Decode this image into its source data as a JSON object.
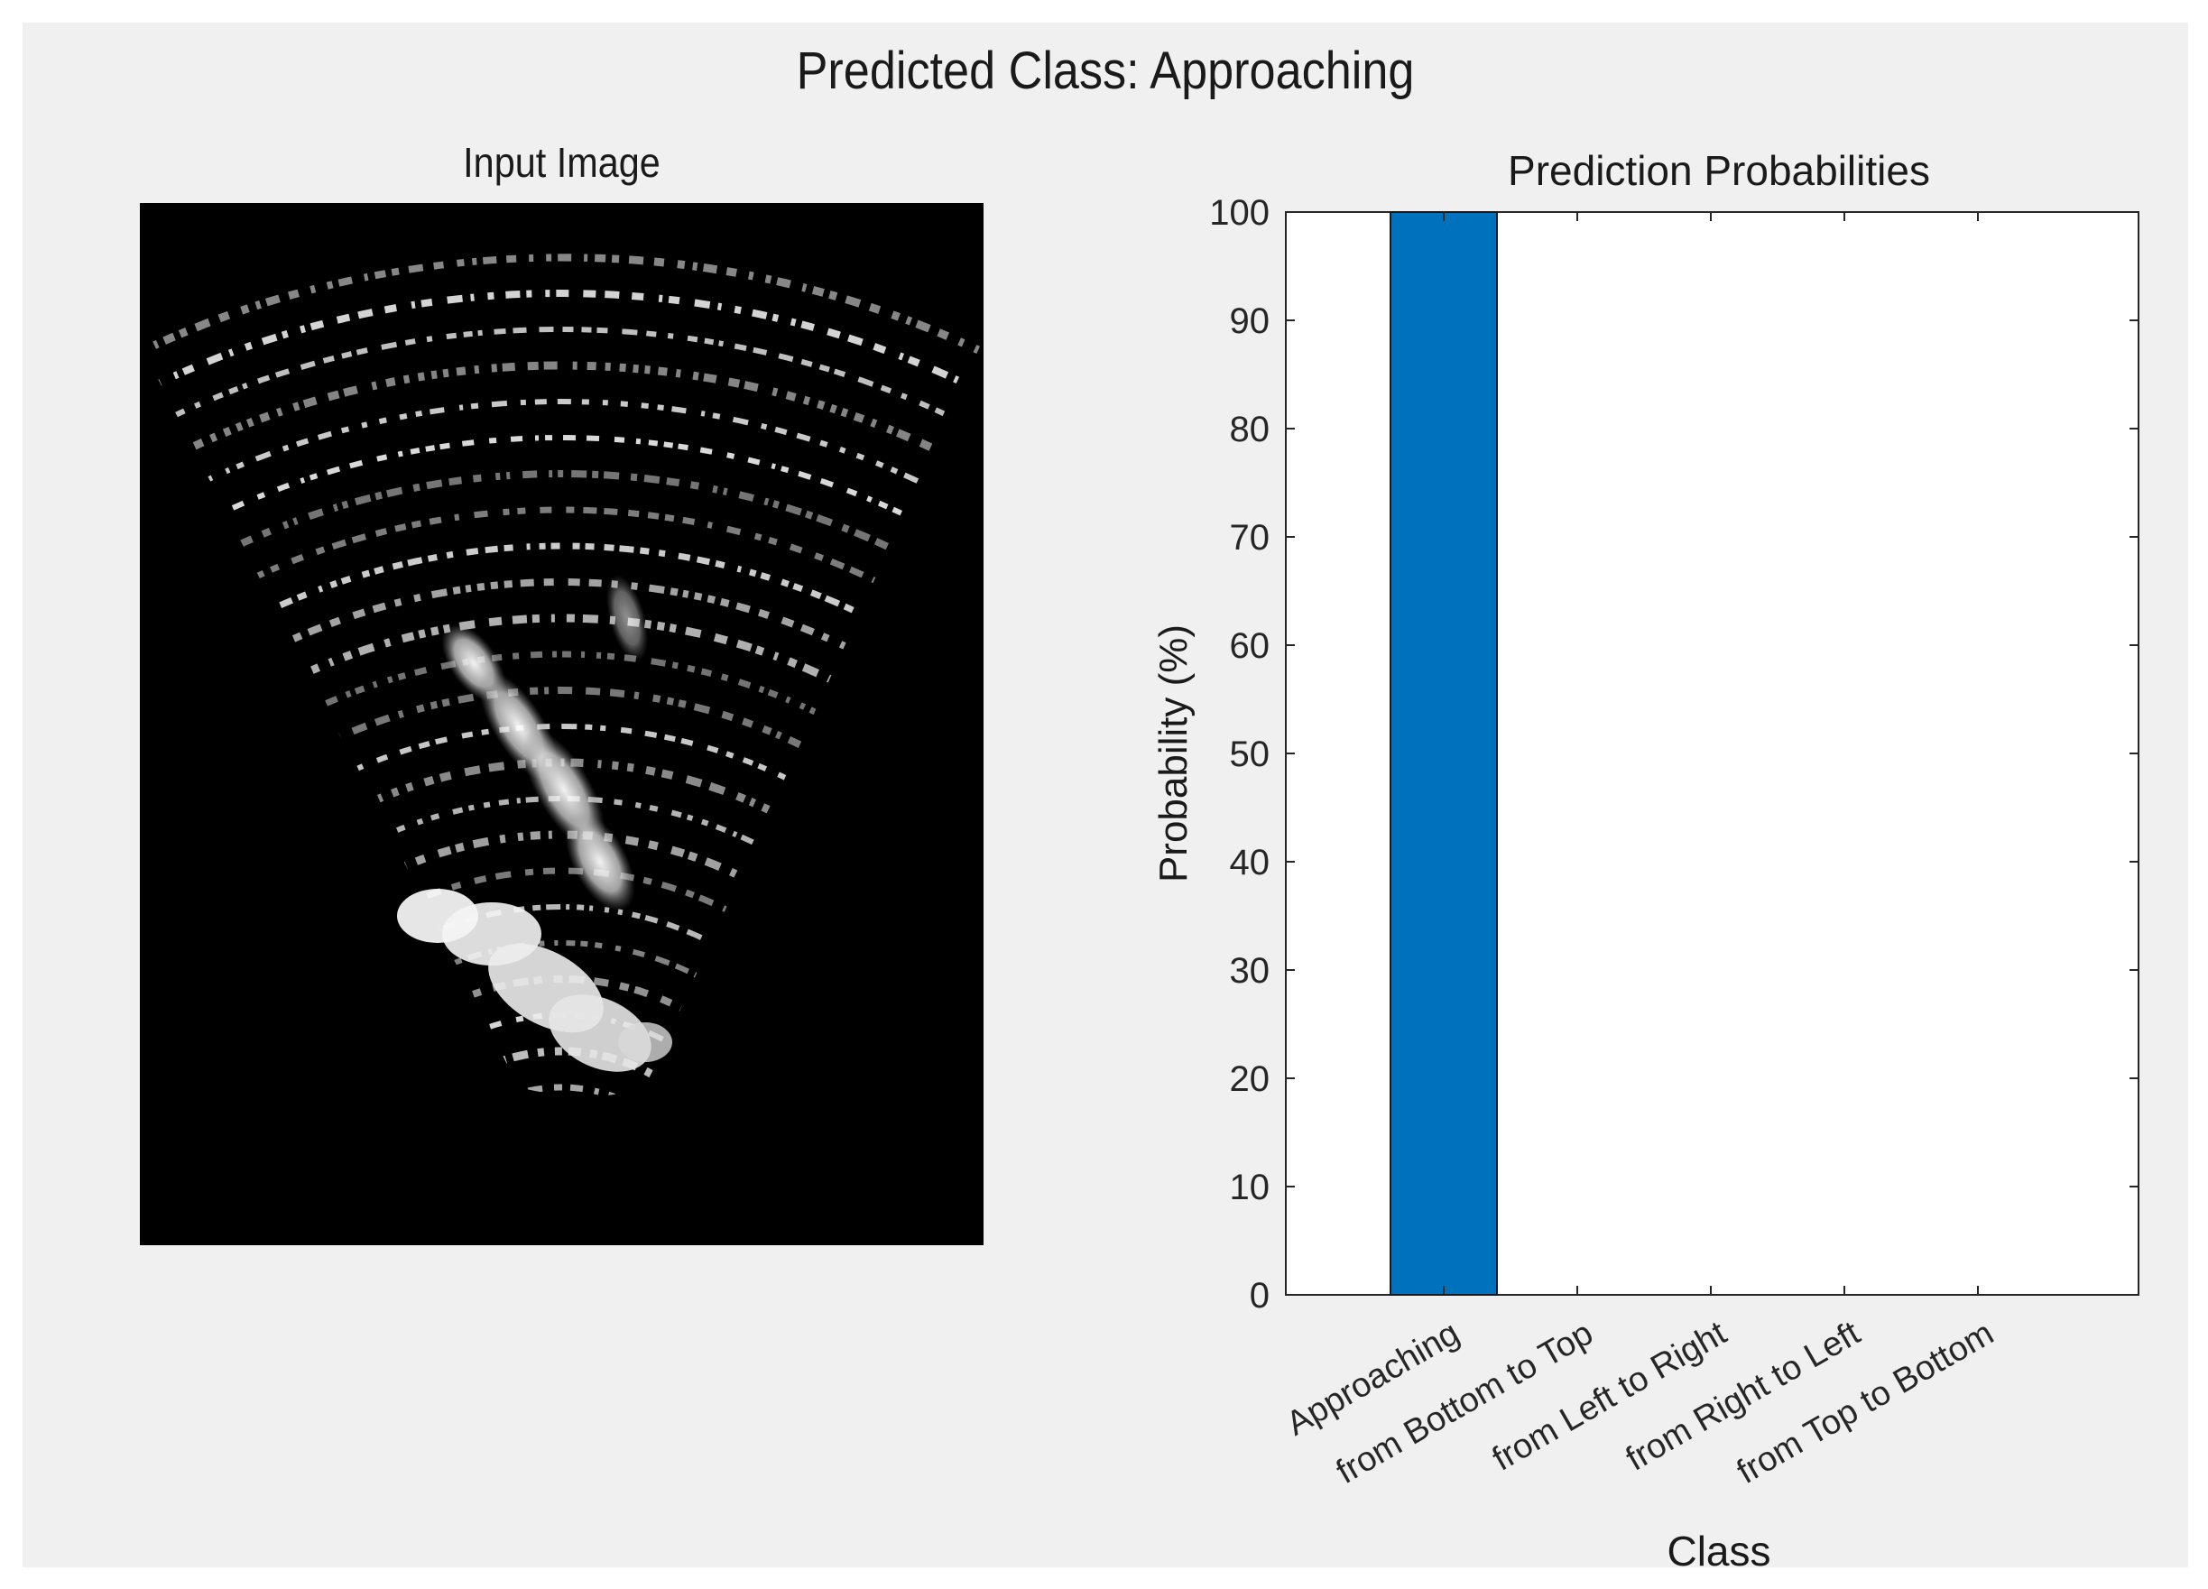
{
  "figure": {
    "title": "Predicted Class: Approaching"
  },
  "input_panel": {
    "title": "Input Image"
  },
  "chart_data": {
    "type": "bar",
    "title": "Prediction Probabilities",
    "xlabel": "Class",
    "ylabel": "Probability (%)",
    "categories": [
      "Approaching",
      "from Bottom to Top",
      "from Left to Right",
      "from Right to Left",
      "from Top to Bottom"
    ],
    "values": [
      100,
      0,
      0,
      0,
      0
    ],
    "ylim": [
      0,
      100
    ],
    "yticks": [
      0,
      10,
      20,
      30,
      40,
      50,
      60,
      70,
      80,
      90,
      100
    ],
    "bar_color": "#0072BD",
    "grid": false,
    "legend": "none"
  }
}
